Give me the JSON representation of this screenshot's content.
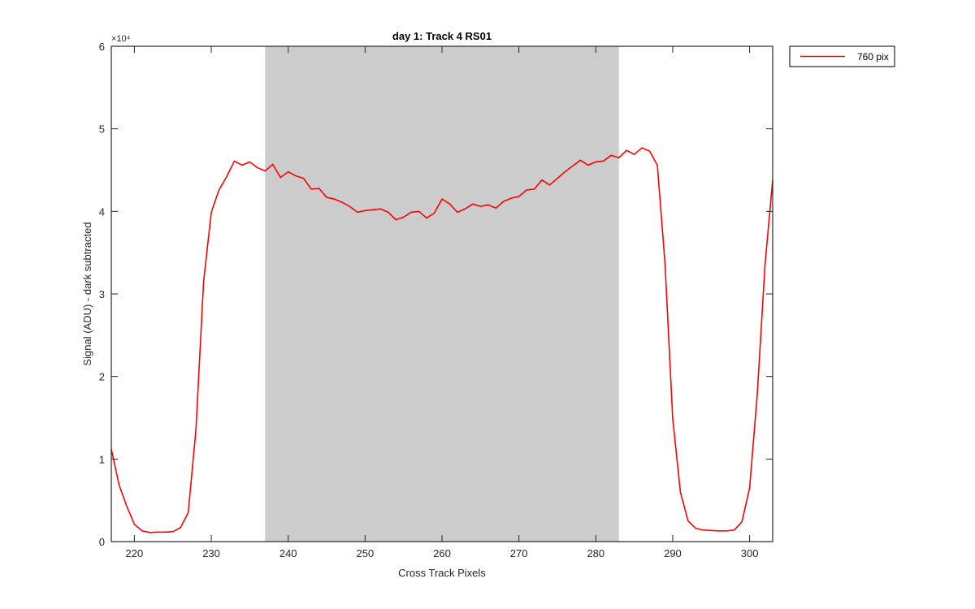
{
  "chart_data": {
    "type": "line",
    "title": "day 1: Track 4  RS01",
    "xlabel": "Cross Track Pixels",
    "ylabel": "Signal (ADU) - dark subtracted",
    "xlim": [
      217,
      303
    ],
    "ylim": [
      0,
      60000
    ],
    "x_ticks": [
      220,
      230,
      240,
      250,
      260,
      270,
      280,
      290,
      300
    ],
    "y_ticks": [
      0,
      10000,
      20000,
      30000,
      40000,
      50000,
      60000
    ],
    "y_tick_labels": [
      "0",
      "1",
      "2",
      "3",
      "4",
      "5",
      "6"
    ],
    "y_exponent_label": "×10⁴",
    "grid": false,
    "legend_position": "outside-top-right",
    "shaded_region": {
      "x_start": 237,
      "x_end": 283,
      "color": "#cccccc"
    },
    "series": [
      {
        "name": "760 pix",
        "color": "#ff0000",
        "x": [
          217,
          218,
          219,
          220,
          221,
          222,
          223,
          224,
          225,
          226,
          227,
          228,
          229,
          230,
          231,
          232,
          233,
          234,
          235,
          236,
          237,
          238,
          239,
          240,
          241,
          242,
          243,
          244,
          245,
          246,
          247,
          248,
          249,
          250,
          251,
          252,
          253,
          254,
          255,
          256,
          257,
          258,
          259,
          260,
          261,
          262,
          263,
          264,
          265,
          266,
          267,
          268,
          269,
          270,
          271,
          272,
          273,
          274,
          275,
          276,
          277,
          278,
          279,
          280,
          281,
          282,
          283,
          284,
          285,
          286,
          287,
          288,
          289,
          290,
          291,
          292,
          293,
          294,
          295,
          296,
          297,
          298,
          299,
          300,
          301,
          302,
          303
        ],
        "y": [
          11200,
          6900,
          4300,
          2100,
          1300,
          1100,
          1150,
          1150,
          1200,
          1700,
          3500,
          13500,
          31500,
          39900,
          42600,
          44200,
          46100,
          45600,
          46000,
          45300,
          44900,
          45700,
          44100,
          44800,
          44300,
          44000,
          42700,
          42800,
          41700,
          41500,
          41100,
          40600,
          39900,
          40100,
          40200,
          40300,
          39900,
          39000,
          39300,
          39900,
          40000,
          39200,
          39800,
          41500,
          40900,
          39900,
          40300,
          40900,
          40600,
          40800,
          40400,
          41200,
          41600,
          41800,
          42600,
          42700,
          43800,
          43200,
          44000,
          44800,
          45500,
          46200,
          45600,
          46000,
          46100,
          46800,
          46500,
          47400,
          46900,
          47700,
          47300,
          45600,
          33700,
          14900,
          6000,
          2500,
          1600,
          1400,
          1350,
          1300,
          1300,
          1400,
          2400,
          6500,
          17900,
          33500,
          43800
        ]
      }
    ]
  }
}
